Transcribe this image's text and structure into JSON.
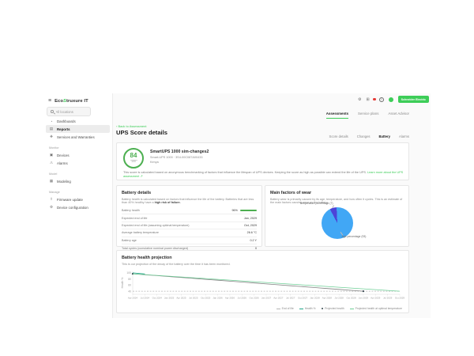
{
  "app": {
    "logo_prefix": "Eco",
    "logo_leaf": "S",
    "logo_suffix": "truxure IT"
  },
  "brand_button": "Schneider Electric",
  "colors": {
    "brand_green": "#3dcd58",
    "score_green": "#4caf50",
    "badge_red": "#e53935",
    "pie_blue": "#41a7f5",
    "pie_purple": "#4d43d8"
  },
  "icons": {
    "menu": "≡",
    "dashboards": "◔",
    "reports": "▤",
    "services": "❖",
    "devices": "▣",
    "alarms": "⚠",
    "modeling": "▦",
    "firmware": "⇧",
    "configuration": "⚙",
    "settings": "⚙",
    "apps": "⊞",
    "help": "?",
    "back": "‹",
    "external": "↗"
  },
  "header": {
    "search_placeholder": "All locations"
  },
  "sidebar": {
    "sections": [
      {
        "label": "Analyze",
        "items": [
          {
            "label": "Dashboards",
            "icon": "dashboards",
            "active": false
          },
          {
            "label": "Reports",
            "icon": "reports",
            "active": true
          },
          {
            "label": "Services and Warranties",
            "icon": "services",
            "active": false
          }
        ]
      },
      {
        "label": "Monitor",
        "items": [
          {
            "label": "Devices",
            "icon": "devices",
            "active": false
          },
          {
            "label": "Alarms",
            "icon": "alarms",
            "active": false
          }
        ]
      },
      {
        "label": "Model",
        "items": [
          {
            "label": "Modeling",
            "icon": "modeling",
            "active": false
          }
        ]
      },
      {
        "label": "Manage",
        "items": [
          {
            "label": "Firmware update",
            "icon": "firmware",
            "active": false
          },
          {
            "label": "Device configuration",
            "icon": "configuration",
            "active": false
          }
        ]
      }
    ]
  },
  "tabs_primary": [
    {
      "label": "Assessments",
      "active": true
    },
    {
      "label": "Service plans",
      "active": false
    },
    {
      "label": "Asset Advisor",
      "active": false
    }
  ],
  "back_link": "Back to Assessment",
  "page_title": "UPS Score details",
  "tabs_secondary": [
    {
      "label": "Score details",
      "active": false
    },
    {
      "label": "Changes",
      "active": false
    },
    {
      "label": "Battery",
      "active": true
    },
    {
      "label": "Alarms",
      "active": false
    }
  ],
  "score_card": {
    "score": "84",
    "score_max": "100",
    "device_name": "SmartUPS 1000 sim-changes2",
    "device_meta": "Smart-UPS 1000 · 3S4-00C087A00433",
    "location": "Kenya",
    "description": "This score is calculated based on anonymous benchmarking of factors that influence the lifespan of UPS devices. Keeping the score as high as possible can extend the life of the UPS. ",
    "link": "Learn more about the UPS assessment ↗"
  },
  "battery_details": {
    "title": "Battery details",
    "description": "Battery health is calculated based on factors that influence the life of the battery. Batteries that are less than 40% healthy have a ",
    "description_bold": "high risk of failure.",
    "rows": [
      {
        "label": "Battery health",
        "value": "96%",
        "bar": 96
      },
      {
        "label": "Expected end of life",
        "value": "Jan, 2029"
      },
      {
        "label": "Expected end of life (assuming optimal temperature)",
        "value": "Oct, 2029"
      },
      {
        "label": "Average battery temperature",
        "value": "26.6 °C"
      },
      {
        "label": "Battery age",
        "value": "0.2 Y"
      },
      {
        "label": "Total cycles (cumulative nominal power discharged)",
        "value": "0"
      }
    ]
  },
  "wear_card": {
    "title": "Main factors of wear",
    "description": "Battery wear is primarily caused by its age, temperature, and how often it cycles. This is an estimate of the main factors causing wear on the battery.",
    "pie": {
      "start_angle_deg": 332,
      "slices": [
        {
          "label": "Temperature percentage (7)",
          "value": 7,
          "color": "#4d43d8"
        },
        {
          "label": "Age percentage (93)",
          "value": 93,
          "color": "#41a7f5"
        }
      ]
    }
  },
  "projection_card": {
    "title": "Battery health projection",
    "description": "This is our projection of the decay of the battery over the time it has been monitored."
  },
  "chart_data": {
    "type": "line",
    "title": "Battery health projection",
    "xlabel": "",
    "ylabel": "Health %",
    "ylim": [
      30,
      105
    ],
    "yticks": [
      100,
      80,
      60,
      40
    ],
    "grid": false,
    "legend_position": "bottom-right",
    "x": [
      "Apr 2024",
      "Jul 2024",
      "Oct 2024",
      "Jan 2025",
      "Apr 2025",
      "Jul 2025",
      "Oct 2025",
      "Jan 2026",
      "Apr 2026",
      "Jul 2026",
      "Oct 2026",
      "Jan 2027",
      "Apr 2027",
      "Jul 2027",
      "Oct 2027",
      "Jan 2028",
      "Apr 2028",
      "Jul 2028",
      "Oct 2028",
      "Jan 2029",
      "Apr 2029",
      "Jul 2029",
      "Oct 2029"
    ],
    "series": [
      {
        "name": "End of life",
        "color": "#b5b5b5",
        "style": "dashed",
        "values": [
          40,
          40,
          40,
          40,
          40,
          40,
          40,
          40,
          40,
          40,
          40,
          40,
          40,
          40,
          40,
          40,
          40,
          40,
          40,
          40,
          40,
          40,
          40
        ]
      },
      {
        "name": "Health %",
        "color": "#1fa588",
        "style": "solid",
        "values": [
          100,
          96.5,
          null,
          null,
          null,
          null,
          null,
          null,
          null,
          null,
          null,
          null,
          null,
          null,
          null,
          null,
          null,
          null,
          null,
          null,
          null,
          null,
          null
        ]
      },
      {
        "name": "Projected health",
        "color": "#828282",
        "style": "solid",
        "marker_color": "#37474f",
        "values": [
          97,
          94,
          91,
          88,
          85,
          82,
          79,
          76,
          73,
          70,
          67,
          64,
          61,
          58,
          55,
          52,
          49,
          46,
          43,
          40,
          null,
          null,
          null
        ]
      },
      {
        "name": "Projected health at optimal temperature",
        "color": "#6fcf97",
        "style": "solid",
        "values": [
          97,
          94.4,
          91.8,
          89.2,
          86.6,
          84,
          81.5,
          78.9,
          76.3,
          73.7,
          71.1,
          68.5,
          66,
          63.4,
          60.8,
          58.2,
          55.6,
          53,
          50.5,
          47.9,
          45.3,
          42.7,
          40
        ]
      }
    ]
  }
}
